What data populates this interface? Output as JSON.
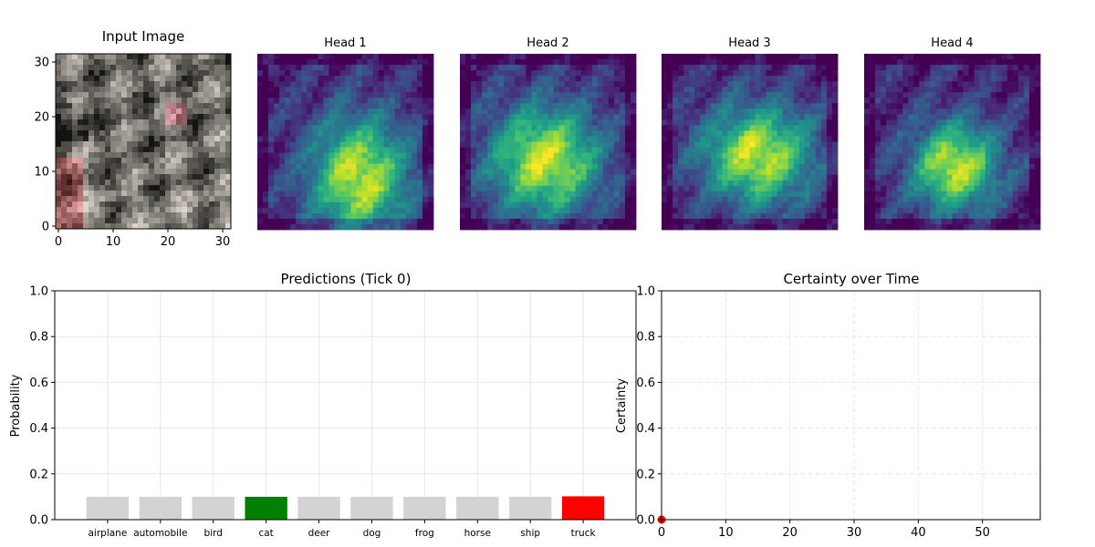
{
  "input_panel": {
    "title": "Input Image",
    "xticks": [
      "0",
      "10",
      "20",
      "30"
    ],
    "yticks": [
      "0",
      "10",
      "20",
      "30"
    ],
    "xlim": [
      -0.5,
      31.5
    ],
    "ylim": [
      31.5,
      -0.5
    ]
  },
  "heads": [
    {
      "title": "Head 1"
    },
    {
      "title": "Head 2"
    },
    {
      "title": "Head 3"
    },
    {
      "title": "Head 4"
    }
  ],
  "chart_data": [
    {
      "type": "bar",
      "title": "Predictions (Tick 0)",
      "xlabel": "",
      "ylabel": "Probability",
      "ylim": [
        0,
        1
      ],
      "yticks": [
        "0.0",
        "0.2",
        "0.4",
        "0.6",
        "0.8",
        "1.0"
      ],
      "categories": [
        "airplane",
        "automobile",
        "bird",
        "cat",
        "deer",
        "dog",
        "frog",
        "horse",
        "ship",
        "truck"
      ],
      "values": [
        0.1,
        0.1,
        0.1,
        0.1,
        0.1,
        0.1,
        0.1,
        0.1,
        0.1,
        0.102
      ],
      "colors": [
        "#d3d3d3",
        "#d3d3d3",
        "#d3d3d3",
        "#008000",
        "#d3d3d3",
        "#d3d3d3",
        "#d3d3d3",
        "#d3d3d3",
        "#d3d3d3",
        "#ff0000"
      ],
      "grid": true
    },
    {
      "type": "line",
      "title": "Certainty over Time",
      "xlabel": "",
      "ylabel": "Certainty",
      "xlim": [
        0,
        59
      ],
      "ylim": [
        0,
        1
      ],
      "xticks": [
        "0",
        "10",
        "20",
        "30",
        "40",
        "50"
      ],
      "yticks": [
        "0.0",
        "0.2",
        "0.4",
        "0.6",
        "0.8",
        "1.0"
      ],
      "series": [
        {
          "x": [
            0
          ],
          "y": [
            0.0
          ],
          "color": "#ff0000"
        }
      ],
      "grid": true
    }
  ]
}
